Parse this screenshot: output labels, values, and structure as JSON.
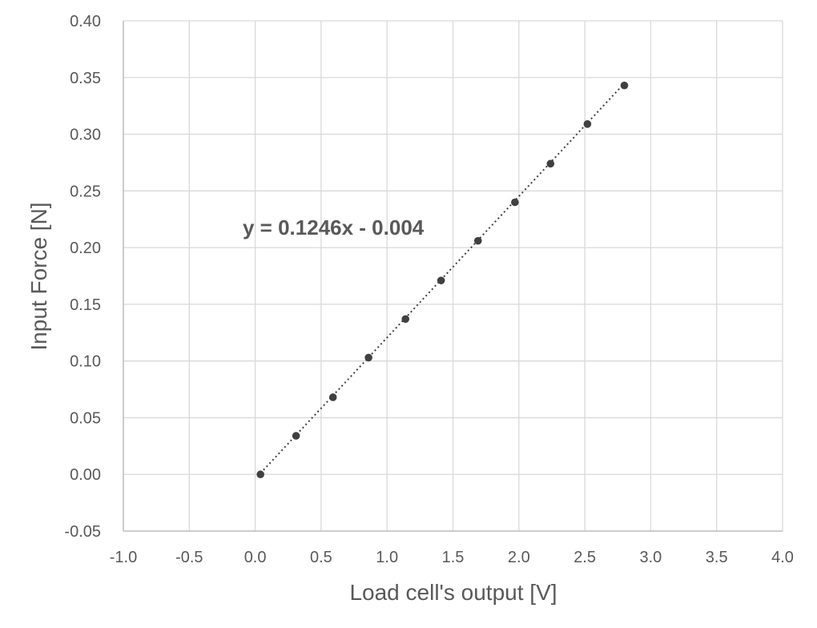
{
  "chart_data": {
    "type": "scatter",
    "xlabel": "Load cell's output  [V]",
    "ylabel": "Input Force [N]",
    "xlim": [
      -1.0,
      4.0
    ],
    "ylim": [
      -0.05,
      0.4
    ],
    "xticks": [
      "-1.0",
      "-0.5",
      "0.0",
      "0.5",
      "1.0",
      "1.5",
      "2.0",
      "2.5",
      "3.0",
      "3.5",
      "4.0"
    ],
    "yticks": [
      "-0.05",
      "0.00",
      "0.05",
      "0.10",
      "0.15",
      "0.20",
      "0.25",
      "0.30",
      "0.35",
      "0.40"
    ],
    "grid": true,
    "legend": "none",
    "marker_color": "#404040",
    "trendline": {
      "style": "dotted",
      "color": "#404040",
      "slope": 0.1246,
      "intercept": -0.004,
      "equation_label": "y = 0.1246x - 0.004"
    },
    "series": [
      {
        "x": [
          0.04,
          0.31,
          0.59,
          0.86,
          1.14,
          1.41,
          1.69,
          1.97,
          2.24,
          2.52,
          2.8
        ],
        "y": [
          0.0,
          0.034,
          0.068,
          0.103,
          0.137,
          0.171,
          0.206,
          0.24,
          0.274,
          0.309,
          0.343
        ]
      }
    ]
  }
}
